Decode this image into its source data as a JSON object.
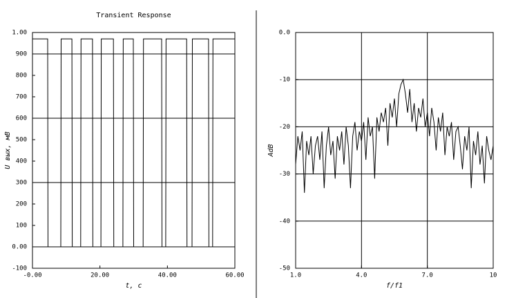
{
  "chart_data": [
    {
      "type": "line",
      "title": "Transient Response",
      "xlabel": "t, c",
      "ylabel": "U вых, мВ",
      "color": "#000000",
      "x": [
        0,
        4.5,
        4.6,
        8.4,
        8.5,
        11.7,
        11.8,
        14.3,
        14.4,
        17.8,
        17.9,
        20.3,
        20.4,
        24.0,
        24.1,
        26.8,
        26.9,
        29.9,
        30.0,
        32.8,
        32.9,
        38.3,
        38.4,
        39.5,
        39.6,
        45.7,
        45.8,
        47.3,
        47.4,
        52.2,
        52.3,
        53.4,
        53.5,
        60
      ],
      "values": [
        970,
        970,
        0,
        0,
        970,
        970,
        0,
        0,
        970,
        970,
        0,
        0,
        970,
        970,
        0,
        0,
        970,
        970,
        0,
        0,
        970,
        970,
        0,
        0,
        970,
        970,
        0,
        0,
        970,
        970,
        0,
        0,
        970,
        970
      ],
      "xlim": [
        0,
        60
      ],
      "xticks": [
        {
          "value": 0,
          "label": "-0.00"
        },
        {
          "value": 20,
          "label": "20.00"
        },
        {
          "value": 40,
          "label": "40.00"
        },
        {
          "value": 60,
          "label": "60.00"
        }
      ],
      "ylim": [
        -100,
        1000
      ],
      "yticks": [
        {
          "value": 1000,
          "label": "1.00"
        },
        900,
        800,
        700,
        600,
        500,
        400,
        300,
        200,
        100,
        {
          "value": 0,
          "label": "0.00"
        },
        -100
      ],
      "ygrid": [
        900,
        600,
        300,
        0
      ],
      "xgrid": []
    },
    {
      "type": "line",
      "xlabel": "f/f1",
      "ylabel": "AdB",
      "color": "#000000",
      "x": [
        1.0,
        1.1,
        1.2,
        1.3,
        1.4,
        1.5,
        1.6,
        1.7,
        1.8,
        1.9,
        2.0,
        2.1,
        2.2,
        2.3,
        2.4,
        2.5,
        2.6,
        2.7,
        2.8,
        2.9,
        3.0,
        3.1,
        3.2,
        3.3,
        3.4,
        3.5,
        3.6,
        3.7,
        3.8,
        3.9,
        4.0,
        4.1,
        4.2,
        4.3,
        4.4,
        4.5,
        4.6,
        4.7,
        4.8,
        4.9,
        5.0,
        5.1,
        5.2,
        5.3,
        5.4,
        5.5,
        5.6,
        5.7,
        5.8,
        5.9,
        6.0,
        6.1,
        6.2,
        6.3,
        6.4,
        6.5,
        6.6,
        6.7,
        6.8,
        6.9,
        7.0,
        7.1,
        7.2,
        7.3,
        7.4,
        7.5,
        7.6,
        7.7,
        7.8,
        7.9,
        8.0,
        8.1,
        8.2,
        8.3,
        8.4,
        8.5,
        8.6,
        8.7,
        8.8,
        8.9,
        9.0,
        9.1,
        9.2,
        9.3,
        9.4,
        9.5,
        9.6,
        9.7,
        9.8,
        9.9,
        10.0
      ],
      "values": [
        -28,
        -22,
        -25,
        -21,
        -34,
        -23,
        -26,
        -22,
        -30,
        -24,
        -22,
        -27,
        -21,
        -33,
        -24,
        -20,
        -26,
        -23,
        -31,
        -22,
        -25,
        -21,
        -28,
        -20,
        -24,
        -33,
        -22,
        -19,
        -25,
        -21,
        -23,
        -19,
        -27,
        -18,
        -22,
        -20,
        -31,
        -18,
        -21,
        -17,
        -19,
        -16,
        -24,
        -15,
        -18,
        -14,
        -20,
        -13,
        -11,
        -10,
        -13,
        -17,
        -12,
        -19,
        -15,
        -21,
        -16,
        -18,
        -14,
        -20,
        -17,
        -22,
        -16,
        -19,
        -25,
        -18,
        -21,
        -17,
        -26,
        -20,
        -22,
        -19,
        -27,
        -21,
        -20,
        -24,
        -29,
        -22,
        -25,
        -20,
        -33,
        -23,
        -26,
        -21,
        -28,
        -24,
        -32,
        -22,
        -25,
        -27,
        -24
      ],
      "xlim": [
        1,
        10
      ],
      "xticks": [
        {
          "value": 1,
          "label": "1.0"
        },
        {
          "value": 4,
          "label": "4.0"
        },
        {
          "value": 7,
          "label": "7.0"
        },
        10
      ],
      "ylim": [
        -50,
        0
      ],
      "yticks": [
        {
          "value": 0,
          "label": "0.0"
        },
        -10,
        -20,
        -30,
        -40,
        -50
      ],
      "ygrid": [
        -10,
        -20,
        -30,
        -40
      ],
      "xgrid": [
        4,
        7
      ]
    }
  ]
}
